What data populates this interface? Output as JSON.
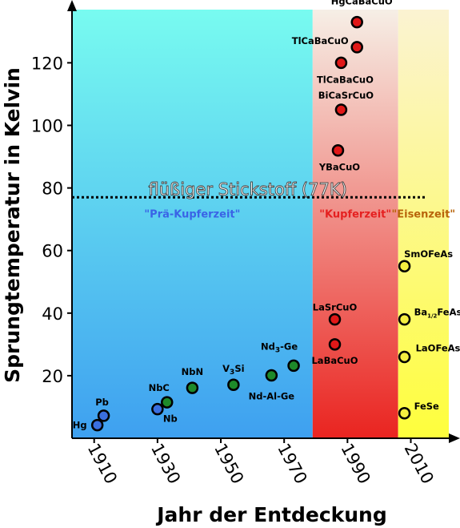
{
  "chart_data": {
    "type": "scatter",
    "title": "",
    "xlabel": "Jahr der Entdeckung",
    "ylabel": "Sprungtemperatur in Kelvin",
    "xlim": [
      1903,
      2022
    ],
    "ylim": [
      0,
      137
    ],
    "xticks": [
      1910,
      1930,
      1950,
      1970,
      1990,
      2010
    ],
    "yticks": [
      20,
      40,
      60,
      80,
      100,
      120
    ],
    "grid": false,
    "reference_line": {
      "value": 77,
      "label": "flüßiger Stickstoff (77K)"
    },
    "regions": [
      {
        "name": "\"Prä-Kupferzeit\"",
        "from": 1903,
        "to": 1979,
        "label_color": "#3a63e6",
        "top_color": "#78fbf0",
        "bottom_color": "#3ea0f0"
      },
      {
        "name": "\"Kupferzeit\"",
        "from": 1979,
        "to": 2006,
        "label_color": "#e52020",
        "top_color": "#f6efe6",
        "bottom_color": "#ea2420"
      },
      {
        "name": "\"Eisenzeit\"",
        "from": 2006,
        "to": 2022,
        "label_color": "#b8640a",
        "top_color": "#fbf3d2",
        "bottom_color": "#fefe3c"
      }
    ],
    "series": [
      {
        "name": "",
        "color": "#3a6fe0",
        "points": [
          {
            "x": 1911,
            "y": 4.2,
            "label": "Hg"
          },
          {
            "x": 1913,
            "y": 7.2,
            "label": "Pb"
          },
          {
            "x": 1930,
            "y": 9.3,
            "label": "Nb"
          }
        ]
      },
      {
        "name": "",
        "color": "#1e8a2a",
        "points": [
          {
            "x": 1933,
            "y": 11.5,
            "label": "NbC"
          },
          {
            "x": 1941,
            "y": 16.1,
            "label": "NbN"
          },
          {
            "x": 1954,
            "y": 17.1,
            "label": "V3Si"
          },
          {
            "x": 1966,
            "y": 20.1,
            "label": "Nd-Al-Ge"
          },
          {
            "x": 1973,
            "y": 23.2,
            "label": "Nd3-Ge"
          }
        ]
      },
      {
        "name": "",
        "color": "#e01818",
        "points": [
          {
            "x": 1986,
            "y": 30,
            "label": "LaBaCuO"
          },
          {
            "x": 1986,
            "y": 38,
            "label": "LaSrCuO"
          },
          {
            "x": 1987,
            "y": 92,
            "label": "YBaCuO"
          },
          {
            "x": 1988,
            "y": 105,
            "label": "BiCaSrCuO"
          },
          {
            "x": 1988,
            "y": 120,
            "label": "TlCaBaCuO"
          },
          {
            "x": 1993,
            "y": 125,
            "label": "TlCaBaCuO"
          },
          {
            "x": 1993,
            "y": 133,
            "label": "HgCaBaCuO"
          }
        ]
      },
      {
        "name": "",
        "color": "#f4ee40",
        "points": [
          {
            "x": 2008,
            "y": 55,
            "label": "SmOFeAs"
          },
          {
            "x": 2008,
            "y": 38,
            "label": "Ba1/2FeAs"
          },
          {
            "x": 2008,
            "y": 26,
            "label": "LaOFeAs"
          },
          {
            "x": 2008,
            "y": 8,
            "label": "FeSe"
          }
        ]
      }
    ]
  }
}
